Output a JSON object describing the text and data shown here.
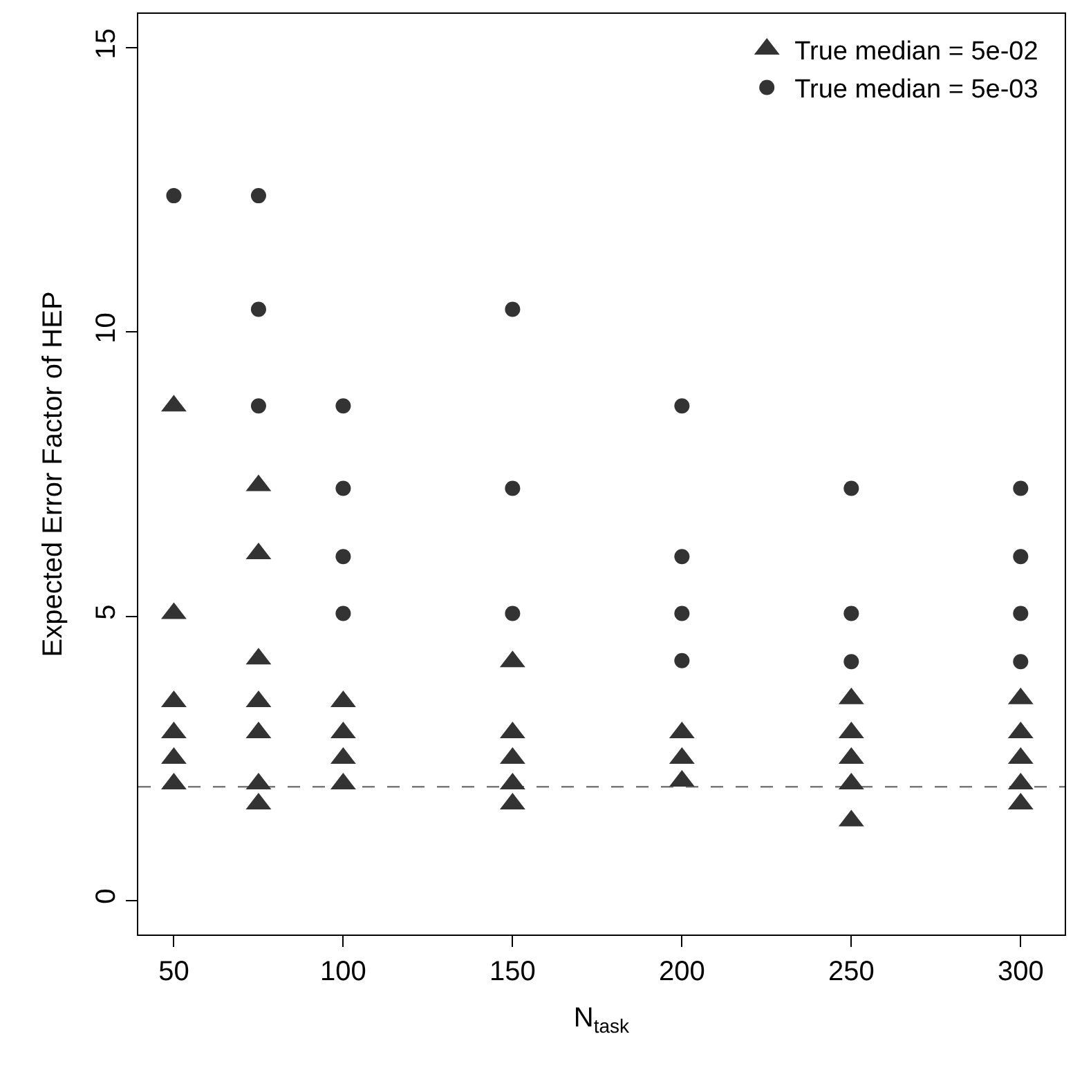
{
  "chart_data": {
    "type": "scatter",
    "xlabel": "N$_{task}$",
    "ylabel": "Expected Error Factor of HEP",
    "xlim": [
      39.5,
      313
    ],
    "ylim": [
      -0.6,
      15.6
    ],
    "xticks": [
      50,
      100,
      150,
      200,
      250,
      300
    ],
    "yticks": [
      0,
      5,
      10,
      15
    ],
    "legend": "top right",
    "series": [
      {
        "name": "True median = 5e-02",
        "color": "#333333",
        "marker": "triangle",
        "x": [
          50,
          50,
          50,
          50,
          50,
          50,
          75,
          75,
          75,
          75,
          75,
          75,
          75,
          100,
          100,
          100,
          100,
          150,
          150,
          150,
          150,
          150,
          200,
          200,
          200,
          250,
          250,
          250,
          250,
          250,
          300,
          300,
          300,
          300,
          300
        ],
        "values": [
          8.7,
          5.05,
          3.5,
          2.95,
          2.5,
          2.05,
          7.3,
          6.1,
          4.25,
          3.5,
          2.95,
          2.05,
          1.7,
          3.5,
          2.95,
          2.5,
          2.05,
          4.2,
          2.95,
          2.5,
          2.05,
          1.7,
          2.95,
          2.5,
          2.1,
          3.55,
          2.95,
          2.5,
          2.05,
          1.4,
          3.55,
          2.95,
          2.5,
          2.05,
          1.7
        ]
      },
      {
        "name": "True median = 5e-03",
        "color": "#333333",
        "marker": "circle",
        "x": [
          50,
          75,
          75,
          75,
          100,
          100,
          100,
          100,
          150,
          150,
          150,
          200,
          200,
          200,
          200,
          250,
          250,
          250,
          300,
          300,
          300,
          300
        ],
        "values": [
          12.4,
          12.4,
          10.4,
          8.7,
          8.7,
          7.25,
          6.05,
          5.05,
          10.4,
          7.25,
          5.05,
          8.7,
          6.05,
          5.05,
          4.22,
          7.25,
          5.05,
          4.2,
          7.25,
          6.05,
          5.05,
          4.2
        ]
      }
    ],
    "ref_lines": [
      {
        "axis": "y",
        "value": 2,
        "color": "#777777",
        "line_style": "dashed"
      }
    ]
  }
}
